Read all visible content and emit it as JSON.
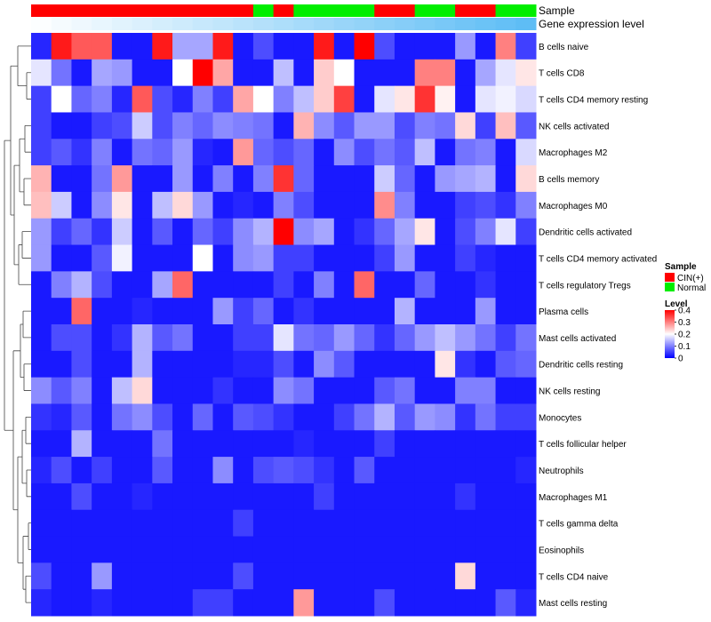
{
  "chart_data": {
    "type": "heatmap",
    "annotation_labels": [
      "Sample",
      "Gene expression level"
    ],
    "columns": 25,
    "sample_groups": [
      "CIN",
      "CIN",
      "CIN",
      "CIN",
      "CIN",
      "CIN",
      "CIN",
      "CIN",
      "CIN",
      "CIN",
      "CIN",
      "Normal",
      "CIN",
      "Normal",
      "Normal",
      "Normal",
      "Normal",
      "CIN",
      "CIN",
      "Normal",
      "Normal",
      "CIN",
      "CIN",
      "Normal",
      "Normal"
    ],
    "gene_expression_level": [
      0.02,
      0.06,
      0.1,
      0.14,
      0.18,
      0.22,
      0.26,
      0.3,
      0.34,
      0.38,
      0.42,
      0.46,
      0.5,
      0.54,
      0.58,
      0.62,
      0.66,
      0.7,
      0.74,
      0.78,
      0.82,
      0.86,
      0.9,
      0.94,
      0.98
    ],
    "rows": [
      {
        "label": "B cells naive",
        "values": [
          0.03,
          0.38,
          0.33,
          0.33,
          0.02,
          0.02,
          0.38,
          0.13,
          0.13,
          0.38,
          0.02,
          0.06,
          0.02,
          0.02,
          0.38,
          0.02,
          0.4,
          0.06,
          0.02,
          0.02,
          0.02,
          0.12,
          0.02,
          0.3,
          0.05
        ]
      },
      {
        "label": "T cells CD8",
        "values": [
          0.18,
          0.09,
          0.02,
          0.13,
          0.12,
          0.02,
          0.02,
          0.2,
          0.4,
          0.27,
          0.02,
          0.02,
          0.15,
          0.02,
          0.24,
          0.2,
          0.02,
          0.02,
          0.02,
          0.3,
          0.3,
          0.02,
          0.13,
          0.18,
          0.22
        ]
      },
      {
        "label": "T cells CD4 memory resting",
        "values": [
          0.05,
          0.2,
          0.08,
          0.1,
          0.03,
          0.33,
          0.06,
          0.03,
          0.1,
          0.05,
          0.27,
          0.2,
          0.1,
          0.15,
          0.24,
          0.35,
          0.02,
          0.18,
          0.22,
          0.36,
          0.21,
          0.02,
          0.18,
          0.19,
          0.17
        ]
      },
      {
        "label": "NK cells activated",
        "values": [
          0.05,
          0.02,
          0.02,
          0.05,
          0.06,
          0.16,
          0.06,
          0.1,
          0.08,
          0.11,
          0.1,
          0.09,
          0.02,
          0.26,
          0.11,
          0.07,
          0.12,
          0.12,
          0.06,
          0.1,
          0.09,
          0.23,
          0.05,
          0.25,
          0.07
        ]
      },
      {
        "label": "Macrophages M2",
        "values": [
          0.05,
          0.07,
          0.04,
          0.1,
          0.02,
          0.09,
          0.08,
          0.12,
          0.03,
          0.02,
          0.28,
          0.08,
          0.06,
          0.08,
          0.02,
          0.11,
          0.06,
          0.09,
          0.07,
          0.15,
          0.02,
          0.09,
          0.1,
          0.02,
          0.17
        ]
      },
      {
        "label": "B cells memory",
        "values": [
          0.26,
          0.02,
          0.02,
          0.09,
          0.28,
          0.02,
          0.02,
          0.12,
          0.02,
          0.1,
          0.02,
          0.1,
          0.36,
          0.08,
          0.02,
          0.02,
          0.02,
          0.16,
          0.08,
          0.02,
          0.12,
          0.13,
          0.14,
          0.02,
          0.23
        ]
      },
      {
        "label": "Macrophages M0",
        "values": [
          0.25,
          0.16,
          0.02,
          0.11,
          0.22,
          0.02,
          0.15,
          0.23,
          0.12,
          0.02,
          0.03,
          0.02,
          0.1,
          0.06,
          0.02,
          0.02,
          0.02,
          0.29,
          0.1,
          0.02,
          0.02,
          0.05,
          0.06,
          0.04,
          0.1
        ]
      },
      {
        "label": "Dendritic cells activated",
        "values": [
          0.12,
          0.05,
          0.08,
          0.04,
          0.16,
          0.02,
          0.07,
          0.02,
          0.08,
          0.05,
          0.11,
          0.14,
          0.4,
          0.11,
          0.13,
          0.02,
          0.04,
          0.08,
          0.13,
          0.22,
          0.02,
          0.06,
          0.1,
          0.18,
          0.05
        ]
      },
      {
        "label": "T cells CD4 memory activated",
        "values": [
          0.12,
          0.02,
          0.02,
          0.07,
          0.19,
          0.02,
          0.02,
          0.02,
          0.2,
          0.02,
          0.11,
          0.12,
          0.05,
          0.05,
          0.02,
          0.02,
          0.02,
          0.05,
          0.12,
          0.02,
          0.02,
          0.05,
          0.03,
          0.02,
          0.02
        ]
      },
      {
        "label": "T cells regulatory  Tregs",
        "values": [
          0.02,
          0.1,
          0.14,
          0.06,
          0.02,
          0.02,
          0.13,
          0.32,
          0.02,
          0.02,
          0.02,
          0.02,
          0.05,
          0.02,
          0.1,
          0.02,
          0.32,
          0.02,
          0.02,
          0.08,
          0.02,
          0.02,
          0.04,
          0.02,
          0.02
        ]
      },
      {
        "label": "Plasma cells",
        "values": [
          0.02,
          0.02,
          0.32,
          0.02,
          0.02,
          0.03,
          0.02,
          0.02,
          0.02,
          0.12,
          0.05,
          0.08,
          0.02,
          0.04,
          0.02,
          0.02,
          0.02,
          0.02,
          0.14,
          0.02,
          0.02,
          0.02,
          0.12,
          0.02,
          0.02
        ]
      },
      {
        "label": "Mast cells activated",
        "values": [
          0.02,
          0.06,
          0.06,
          0.02,
          0.04,
          0.14,
          0.07,
          0.09,
          0.02,
          0.02,
          0.05,
          0.05,
          0.18,
          0.09,
          0.08,
          0.12,
          0.08,
          0.04,
          0.08,
          0.12,
          0.15,
          0.12,
          0.09,
          0.05,
          0.09
        ]
      },
      {
        "label": "Dendritic cells resting",
        "values": [
          0.02,
          0.02,
          0.06,
          0.02,
          0.02,
          0.14,
          0.02,
          0.02,
          0.02,
          0.02,
          0.03,
          0.03,
          0.06,
          0.02,
          0.11,
          0.07,
          0.02,
          0.02,
          0.02,
          0.02,
          0.22,
          0.04,
          0.02,
          0.07,
          0.08
        ]
      },
      {
        "label": "NK cells resting",
        "values": [
          0.11,
          0.07,
          0.1,
          0.02,
          0.15,
          0.23,
          0.02,
          0.02,
          0.02,
          0.04,
          0.02,
          0.02,
          0.11,
          0.09,
          0.02,
          0.02,
          0.02,
          0.07,
          0.09,
          0.02,
          0.02,
          0.1,
          0.1,
          0.02,
          0.02
        ]
      },
      {
        "label": "Monocytes",
        "values": [
          0.04,
          0.03,
          0.07,
          0.02,
          0.09,
          0.11,
          0.06,
          0.02,
          0.08,
          0.02,
          0.07,
          0.06,
          0.04,
          0.02,
          0.02,
          0.05,
          0.09,
          0.14,
          0.07,
          0.12,
          0.11,
          0.04,
          0.09,
          0.05,
          0.05
        ]
      },
      {
        "label": "T cells follicular helper",
        "values": [
          0.02,
          0.02,
          0.14,
          0.02,
          0.02,
          0.02,
          0.09,
          0.02,
          0.02,
          0.02,
          0.02,
          0.02,
          0.02,
          0.03,
          0.02,
          0.02,
          0.02,
          0.05,
          0.02,
          0.02,
          0.02,
          0.02,
          0.02,
          0.02,
          0.02
        ]
      },
      {
        "label": "Neutrophils",
        "values": [
          0.03,
          0.06,
          0.02,
          0.05,
          0.02,
          0.02,
          0.07,
          0.02,
          0.02,
          0.11,
          0.02,
          0.06,
          0.07,
          0.06,
          0.04,
          0.02,
          0.07,
          0.02,
          0.02,
          0.02,
          0.02,
          0.02,
          0.02,
          0.02,
          0.03
        ]
      },
      {
        "label": "Macrophages M1",
        "values": [
          0.02,
          0.02,
          0.06,
          0.02,
          0.02,
          0.03,
          0.02,
          0.02,
          0.02,
          0.02,
          0.02,
          0.02,
          0.02,
          0.02,
          0.05,
          0.02,
          0.02,
          0.02,
          0.02,
          0.02,
          0.02,
          0.04,
          0.02,
          0.02,
          0.02
        ]
      },
      {
        "label": "T cells gamma delta",
        "values": [
          0.02,
          0.02,
          0.02,
          0.02,
          0.02,
          0.02,
          0.02,
          0.02,
          0.02,
          0.02,
          0.05,
          0.02,
          0.02,
          0.02,
          0.02,
          0.02,
          0.02,
          0.02,
          0.02,
          0.02,
          0.02,
          0.02,
          0.02,
          0.02,
          0.02
        ]
      },
      {
        "label": "Eosinophils",
        "values": [
          0.02,
          0.02,
          0.02,
          0.02,
          0.02,
          0.02,
          0.02,
          0.02,
          0.02,
          0.02,
          0.02,
          0.02,
          0.02,
          0.02,
          0.02,
          0.02,
          0.02,
          0.02,
          0.02,
          0.02,
          0.02,
          0.02,
          0.02,
          0.02,
          0.02
        ]
      },
      {
        "label": "T cells CD4 naive",
        "values": [
          0.06,
          0.02,
          0.02,
          0.12,
          0.02,
          0.02,
          0.02,
          0.02,
          0.02,
          0.02,
          0.06,
          0.02,
          0.02,
          0.02,
          0.02,
          0.02,
          0.02,
          0.02,
          0.02,
          0.02,
          0.02,
          0.23,
          0.02,
          0.02,
          0.02
        ]
      },
      {
        "label": "Mast cells resting",
        "values": [
          0.03,
          0.02,
          0.02,
          0.03,
          0.02,
          0.02,
          0.02,
          0.02,
          0.05,
          0.05,
          0.02,
          0.02,
          0.02,
          0.28,
          0.02,
          0.02,
          0.02,
          0.06,
          0.02,
          0.02,
          0.02,
          0.02,
          0.02,
          0.07,
          0.03
        ]
      }
    ],
    "legend_sample": {
      "title": "Sample",
      "items": [
        {
          "label": "CIN(+)",
          "color": "#ff0000"
        },
        {
          "label": "Normal",
          "color": "#00ee00"
        }
      ]
    },
    "legend_level": {
      "title": "Level",
      "ticks": [
        {
          "value": 0.4,
          "label": "0.4"
        },
        {
          "value": 0.3,
          "label": "0.3"
        },
        {
          "value": 0.2,
          "label": "0.2"
        },
        {
          "value": 0.1,
          "label": "0.1"
        },
        {
          "value": 0,
          "label": "0"
        }
      ],
      "range": [
        0,
        0.4
      ]
    },
    "colors": {
      "low": "#0000ff",
      "mid": "#ffffff",
      "high": "#ff0000",
      "cin": "#ff0000",
      "normal": "#00ee00",
      "annot_low": "#ffffff",
      "annot_high": "#5bbcf5"
    }
  }
}
